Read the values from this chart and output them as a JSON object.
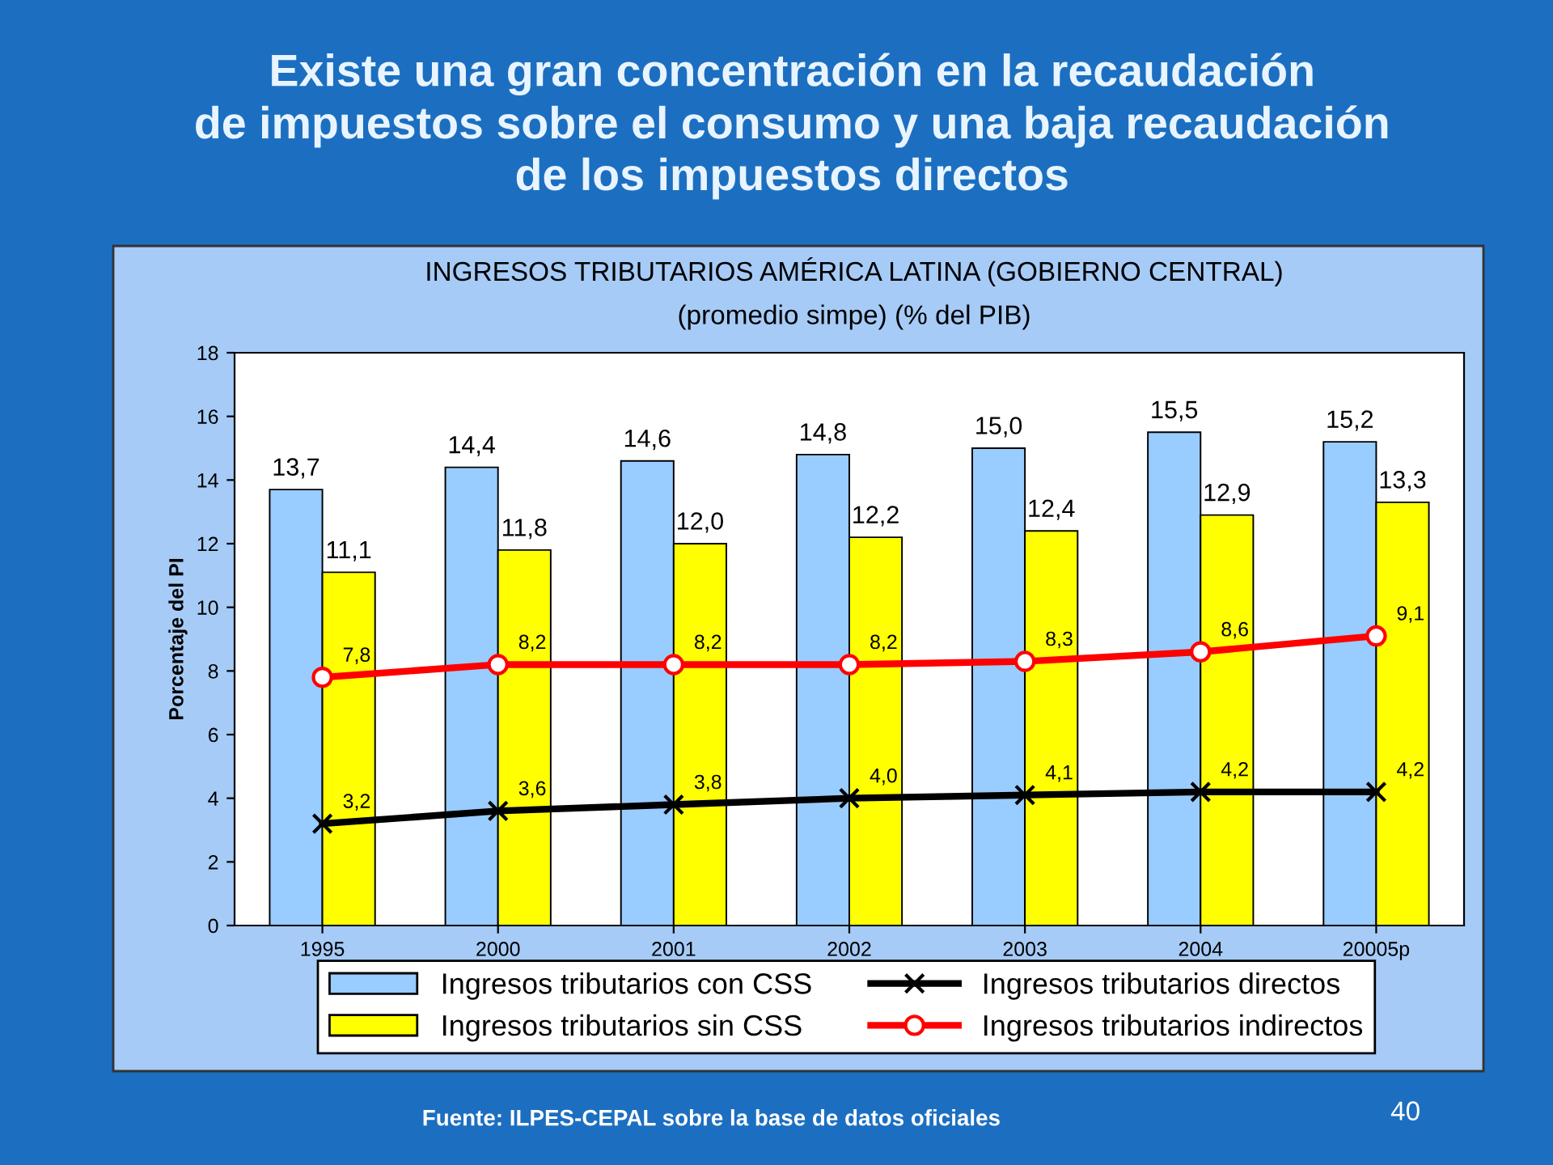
{
  "chart_data": {
    "type": "bar",
    "title": "INGRESOS TRIBUTARIOS AMÉRICA LATINA (GOBIERNO CENTRAL)",
    "subtitle": "(promedio simpe) (% del PIB)",
    "ylabel": "Porcentaje del PI",
    "annotations": [
      "Existe una gran concentración en la recaudación\nde impuestos sobre el consumo y una baja recaudación\nde los impuestos directos",
      "Fuente: ILPES-CEPAL sobre la base de datos oficiales",
      "40"
    ],
    "categories": [
      "1995",
      "2000",
      "2001",
      "2002",
      "2003",
      "2004",
      "20005p"
    ],
    "series": [
      {
        "name": "Ingresos tributarios con CSS",
        "color": "#99ccff",
        "values": [
          13.7,
          14.4,
          14.6,
          14.8,
          15.0,
          15.5,
          15.2
        ],
        "value_labels": [
          "13,7",
          "14,4",
          "14,6",
          "14,8",
          "15,0",
          "15,5",
          "15,2"
        ]
      },
      {
        "name": "Ingresos tributarios sin CSS",
        "color": "#ffff00",
        "values": [
          11.1,
          11.8,
          12.0,
          12.2,
          12.4,
          12.9,
          13.3
        ],
        "value_labels": [
          "11,1",
          "11,8",
          "12,0",
          "12,2",
          "12,4",
          "12,9",
          "13,3"
        ]
      },
      {
        "name": "Ingresos tributarios directos",
        "type": "line",
        "color": "#000000",
        "marker": "cross",
        "values": [
          3.2,
          3.6,
          3.8,
          4.0,
          4.1,
          4.2,
          4.2
        ],
        "value_labels": [
          "3,2",
          "3,6",
          "3,8",
          "4,0",
          "4,1",
          "4,2",
          "4,2"
        ]
      },
      {
        "name": "Ingresos tributarios indirectos",
        "type": "line",
        "color": "#ff0000",
        "marker": "circle",
        "values": [
          7.8,
          8.2,
          8.2,
          8.2,
          8.3,
          8.6,
          9.1
        ],
        "value_labels": [
          "7,8",
          "8,2",
          "8,2",
          "8,2",
          "8,3",
          "8,6",
          "9,1"
        ]
      }
    ],
    "ylim": [
      0,
      18
    ],
    "yticks": [
      0,
      2,
      4,
      6,
      8,
      10,
      12,
      14,
      16,
      18
    ],
    "legend": "bottom"
  }
}
